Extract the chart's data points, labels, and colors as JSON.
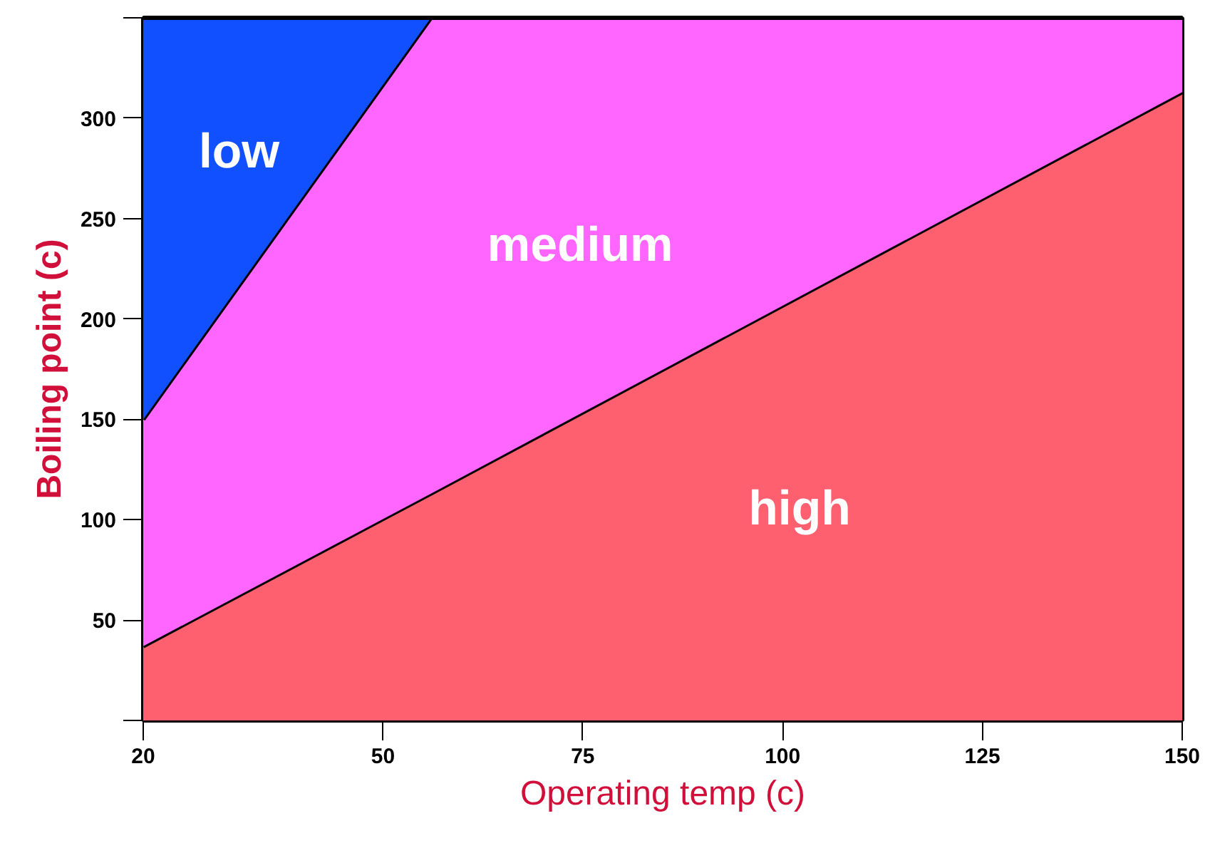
{
  "chart_data": {
    "type": "area",
    "stacked": true,
    "xlabel": "Operating temp (c)",
    "ylabel": "Boiling point (c)",
    "x": [
      20,
      56,
      150
    ],
    "series": [
      {
        "name": "high",
        "color": "#ff6070",
        "values": [
          37,
          113,
          313
        ]
      },
      {
        "name": "medium",
        "color": "#ff66ff",
        "values": [
          113,
          237,
          37
        ]
      },
      {
        "name": "low",
        "color": "#1050ff",
        "values": [
          200,
          0,
          0
        ]
      }
    ],
    "xlim": [
      20,
      150
    ],
    "ylim": [
      0,
      350
    ],
    "xticks": [
      20,
      50,
      75,
      100,
      125,
      150
    ],
    "yticks": [
      {
        "value": 0,
        "label": null
      },
      50,
      100,
      150,
      200,
      250,
      300,
      {
        "value": 350,
        "label": null
      }
    ],
    "grid": false
  }
}
